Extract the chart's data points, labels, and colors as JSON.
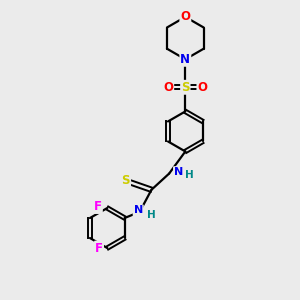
{
  "background_color": "#ebebeb",
  "atom_colors": {
    "C": "#000000",
    "N": "#0000ee",
    "O": "#ff0000",
    "S": "#cccc00",
    "F": "#ff00ff",
    "H": "#008888"
  },
  "bond_color": "#000000",
  "figsize": [
    3.0,
    3.0
  ],
  "dpi": 100
}
